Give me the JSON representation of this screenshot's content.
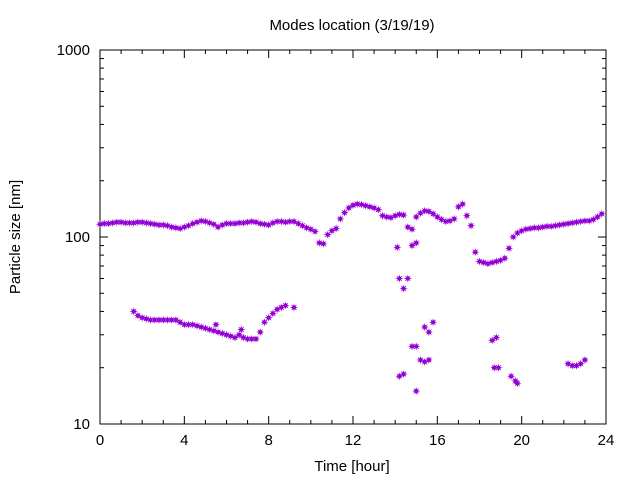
{
  "chart_data": {
    "type": "scatter",
    "title": "Modes location (3/19/19)",
    "xlabel": "Time [hour]",
    "ylabel": "Particle size [nm]",
    "xlim": [
      0,
      24
    ],
    "ylim": [
      10,
      1000
    ],
    "yscale": "log",
    "xticks": [
      "0",
      "4",
      "8",
      "12",
      "16",
      "20",
      "24"
    ],
    "yticks": [
      "10",
      "100",
      "1000"
    ],
    "grid": false,
    "marker": "star",
    "color": "#9400d3",
    "series": [
      {
        "points": [
          [
            0.0,
            117
          ],
          [
            0.2,
            118
          ],
          [
            0.4,
            118
          ],
          [
            0.6,
            119
          ],
          [
            0.8,
            120
          ],
          [
            1.0,
            120
          ],
          [
            1.2,
            119
          ],
          [
            1.4,
            119
          ],
          [
            1.6,
            119
          ],
          [
            1.8,
            120
          ],
          [
            2.0,
            120
          ],
          [
            2.2,
            119
          ],
          [
            2.4,
            118
          ],
          [
            2.6,
            117
          ],
          [
            2.8,
            116
          ],
          [
            3.0,
            116
          ],
          [
            3.2,
            115
          ],
          [
            3.4,
            113
          ],
          [
            3.6,
            112
          ],
          [
            3.8,
            111
          ],
          [
            4.0,
            113
          ],
          [
            4.2,
            115
          ],
          [
            4.4,
            118
          ],
          [
            4.6,
            120
          ],
          [
            4.8,
            122
          ],
          [
            5.0,
            121
          ],
          [
            5.2,
            119
          ],
          [
            5.4,
            117
          ],
          [
            5.6,
            113
          ],
          [
            5.8,
            116
          ],
          [
            6.0,
            118
          ],
          [
            6.2,
            118
          ],
          [
            6.4,
            118
          ],
          [
            6.6,
            119
          ],
          [
            6.8,
            119
          ],
          [
            7.0,
            120
          ],
          [
            7.2,
            121
          ],
          [
            7.4,
            120
          ],
          [
            7.6,
            118
          ],
          [
            7.8,
            117
          ],
          [
            8.0,
            116
          ],
          [
            8.2,
            119
          ],
          [
            8.4,
            121
          ],
          [
            8.6,
            121
          ],
          [
            8.8,
            120
          ],
          [
            9.0,
            121
          ],
          [
            9.2,
            121
          ],
          [
            9.4,
            118
          ],
          [
            9.6,
            115
          ],
          [
            9.8,
            112
          ],
          [
            10.0,
            110
          ],
          [
            10.2,
            107
          ],
          [
            10.4,
            93
          ],
          [
            10.6,
            92
          ],
          [
            10.8,
            103
          ],
          [
            11.0,
            108
          ],
          [
            11.2,
            111
          ],
          [
            11.4,
            125
          ],
          [
            11.6,
            135
          ],
          [
            11.8,
            143
          ],
          [
            12.0,
            148
          ],
          [
            12.2,
            150
          ],
          [
            12.4,
            149
          ],
          [
            12.6,
            147
          ],
          [
            12.8,
            145
          ],
          [
            13.0,
            143
          ],
          [
            13.2,
            140
          ],
          [
            13.4,
            130
          ],
          [
            13.6,
            128
          ],
          [
            13.8,
            127
          ],
          [
            14.0,
            130
          ],
          [
            14.2,
            132
          ],
          [
            14.4,
            131
          ],
          [
            14.6,
            113
          ],
          [
            14.8,
            110
          ],
          [
            15.0,
            128
          ],
          [
            15.2,
            134
          ],
          [
            15.4,
            138
          ],
          [
            15.6,
            137
          ],
          [
            15.8,
            133
          ],
          [
            16.0,
            128
          ],
          [
            16.2,
            124
          ],
          [
            16.4,
            121
          ],
          [
            16.6,
            122
          ],
          [
            16.8,
            125
          ],
          [
            17.0,
            145
          ],
          [
            17.2,
            150
          ],
          [
            17.4,
            130
          ],
          [
            17.6,
            115
          ],
          [
            17.8,
            83
          ],
          [
            18.0,
            74
          ],
          [
            18.2,
            73
          ],
          [
            18.4,
            72
          ],
          [
            18.6,
            73
          ],
          [
            18.8,
            74
          ],
          [
            19.0,
            75
          ],
          [
            19.2,
            77
          ],
          [
            19.4,
            87
          ],
          [
            19.6,
            100
          ],
          [
            19.8,
            105
          ],
          [
            20.0,
            108
          ],
          [
            20.2,
            110
          ],
          [
            20.4,
            111
          ],
          [
            20.6,
            112
          ],
          [
            20.8,
            112
          ],
          [
            21.0,
            113
          ],
          [
            21.2,
            114
          ],
          [
            21.4,
            114
          ],
          [
            21.6,
            115
          ],
          [
            21.8,
            116
          ],
          [
            22.0,
            117
          ],
          [
            22.2,
            118
          ],
          [
            22.4,
            119
          ],
          [
            22.6,
            120
          ],
          [
            22.8,
            121
          ],
          [
            23.0,
            122
          ],
          [
            23.2,
            122
          ],
          [
            23.4,
            124
          ],
          [
            23.6,
            128
          ],
          [
            23.8,
            133
          ],
          [
            1.6,
            40
          ],
          [
            1.8,
            38
          ],
          [
            2.0,
            37
          ],
          [
            2.2,
            36.5
          ],
          [
            2.4,
            36
          ],
          [
            2.6,
            36
          ],
          [
            2.8,
            36
          ],
          [
            3.0,
            36
          ],
          [
            3.2,
            36
          ],
          [
            3.4,
            36
          ],
          [
            3.6,
            36
          ],
          [
            3.8,
            35
          ],
          [
            4.0,
            34
          ],
          [
            4.2,
            34
          ],
          [
            4.4,
            34
          ],
          [
            4.6,
            33.5
          ],
          [
            4.8,
            33
          ],
          [
            5.0,
            32.5
          ],
          [
            5.2,
            32
          ],
          [
            5.4,
            31.5
          ],
          [
            5.6,
            31
          ],
          [
            5.8,
            30.5
          ],
          [
            6.0,
            30
          ],
          [
            6.2,
            29.5
          ],
          [
            6.4,
            29
          ],
          [
            6.6,
            30
          ],
          [
            6.8,
            29
          ],
          [
            7.0,
            28.5
          ],
          [
            7.2,
            28.5
          ],
          [
            7.4,
            28.5
          ],
          [
            7.6,
            31
          ],
          [
            7.8,
            35
          ],
          [
            8.0,
            37
          ],
          [
            8.2,
            39
          ],
          [
            8.4,
            41
          ],
          [
            8.6,
            42
          ],
          [
            8.8,
            43
          ],
          [
            9.2,
            42
          ],
          [
            5.5,
            34
          ],
          [
            6.7,
            32
          ],
          [
            14.2,
            18
          ],
          [
            14.4,
            18.5
          ],
          [
            14.8,
            26
          ],
          [
            15.0,
            26
          ],
          [
            15.0,
            15
          ],
          [
            15.2,
            22
          ],
          [
            15.4,
            21.5
          ],
          [
            15.4,
            33
          ],
          [
            15.6,
            31
          ],
          [
            15.6,
            22
          ],
          [
            15.8,
            35
          ],
          [
            14.1,
            88
          ],
          [
            14.2,
            60
          ],
          [
            14.4,
            53
          ],
          [
            14.6,
            60
          ],
          [
            14.8,
            90
          ],
          [
            15.0,
            93
          ],
          [
            18.6,
            28
          ],
          [
            18.8,
            29
          ],
          [
            18.7,
            20
          ],
          [
            18.9,
            20
          ],
          [
            19.5,
            18
          ],
          [
            19.7,
            17
          ],
          [
            19.8,
            16.5
          ],
          [
            22.2,
            21
          ],
          [
            22.4,
            20.5
          ],
          [
            22.6,
            20.5
          ],
          [
            22.8,
            21
          ],
          [
            23.0,
            22
          ]
        ]
      }
    ]
  }
}
